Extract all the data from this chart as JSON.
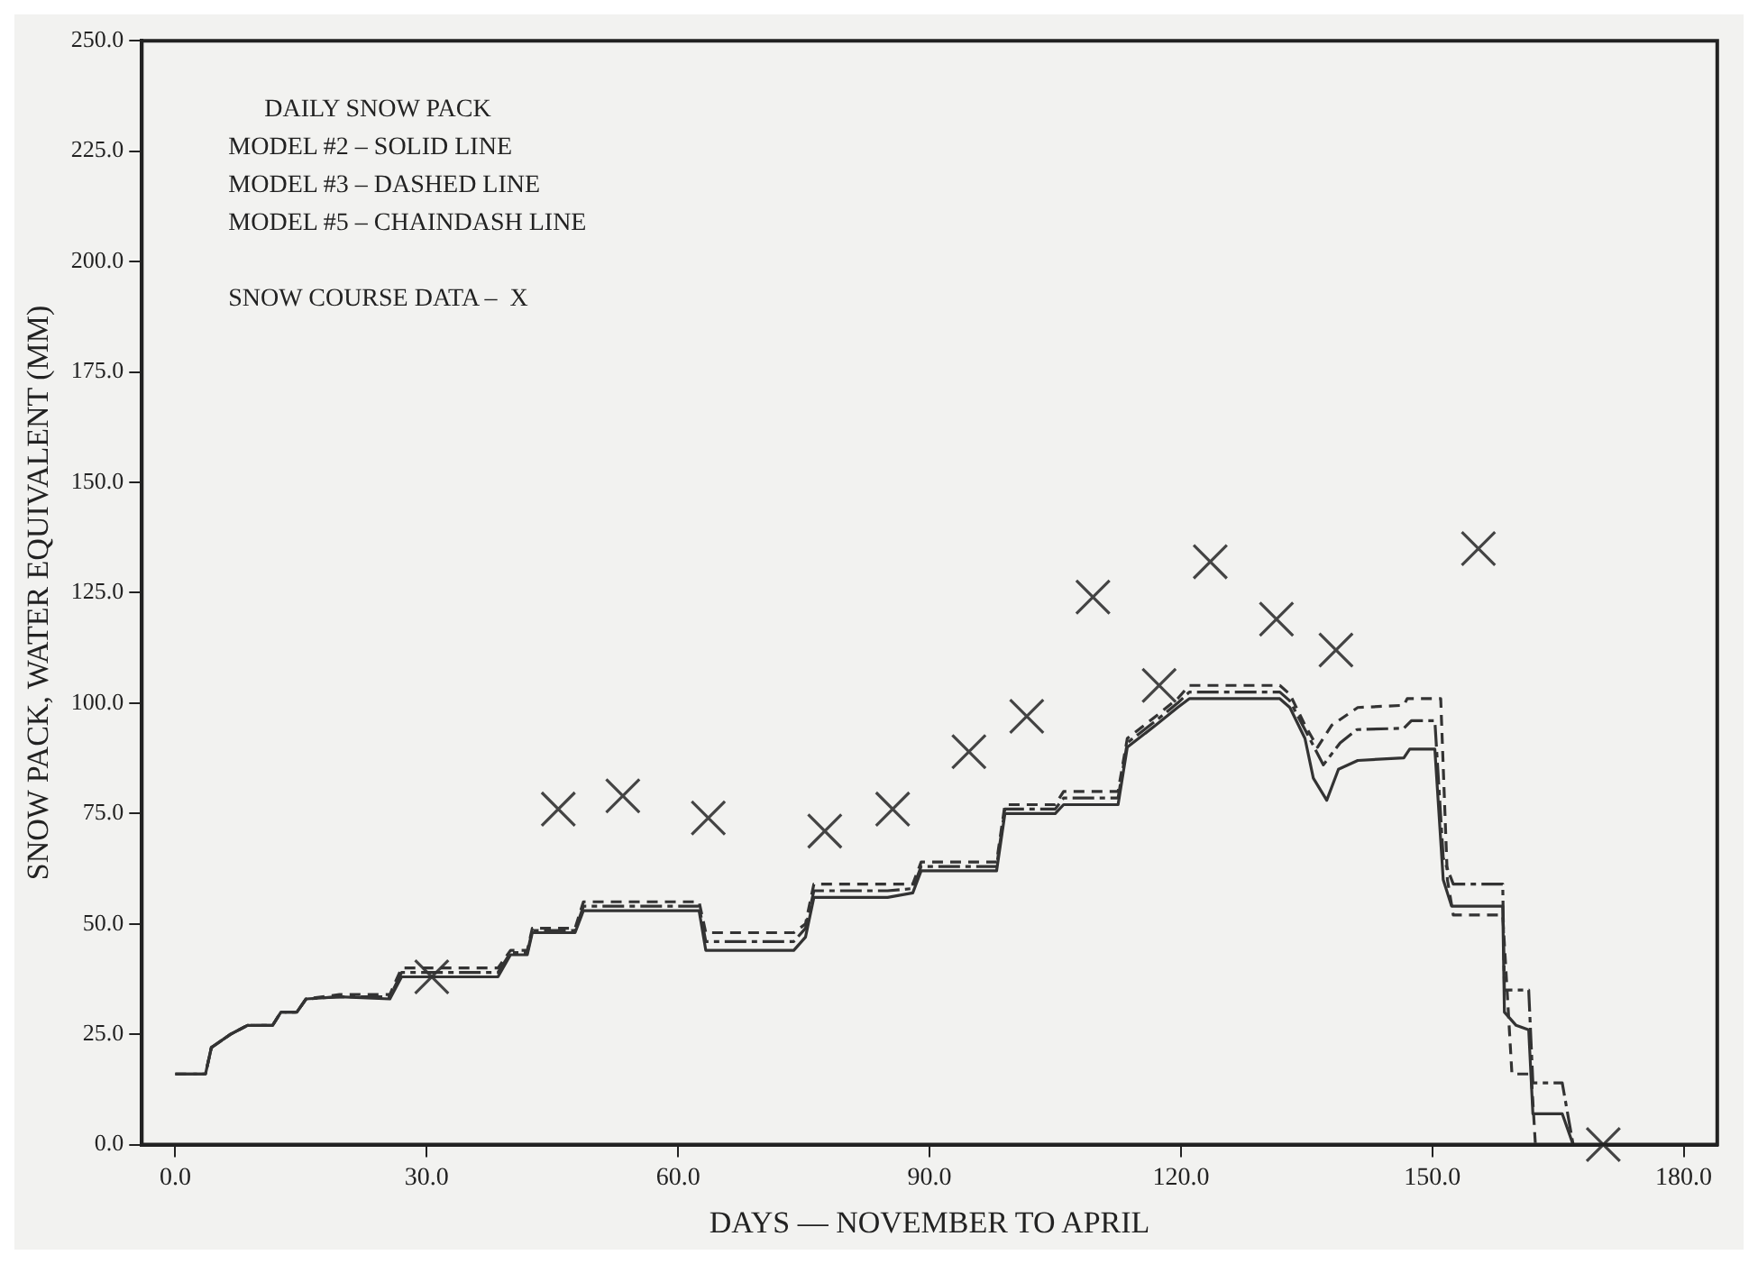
{
  "chart_data": {
    "type": "line",
    "xlabel": "DAYS — NOVEMBER TO APRIL",
    "ylabel": "SNOW PACK, WATER EQUIVALENT (MM)",
    "annotations": [
      "DAILY SNOW PACK",
      "MODEL #2 – SOLID LINE",
      "MODEL #3 – DASHED LINE",
      "MODEL #5 – CHAINDASH LINE",
      "SNOW COURSE DATA –  X"
    ],
    "xlim": [
      -4,
      184
    ],
    "xticks": [
      {
        "value": 0,
        "label": "0.0"
      },
      {
        "value": 30,
        "label": "30.0"
      },
      {
        "value": 60,
        "label": "60.0"
      },
      {
        "value": 90,
        "label": "90.0"
      },
      {
        "value": 120,
        "label": "120.0"
      },
      {
        "value": 150,
        "label": "150.0"
      },
      {
        "value": 180,
        "label": "180.0"
      }
    ],
    "ylim": [
      0,
      250
    ],
    "yticks": [
      {
        "value": 0,
        "label": "0.0"
      },
      {
        "value": 25,
        "label": "25.0"
      },
      {
        "value": 50,
        "label": "50.0"
      },
      {
        "value": 75,
        "label": "75.0"
      },
      {
        "value": 100,
        "label": "100.0"
      },
      {
        "value": 125,
        "label": "125.0"
      },
      {
        "value": 150,
        "label": "150.0"
      },
      {
        "value": 175,
        "label": "175.0"
      },
      {
        "value": 200,
        "label": "200.0"
      },
      {
        "value": 225,
        "label": "225.0"
      },
      {
        "value": 250,
        "label": "250.0"
      }
    ],
    "grid": false,
    "series": [
      {
        "type": "line",
        "line_style": "solid",
        "color": "#333333",
        "x": [
          0,
          3.6,
          4.3,
          6.6,
          8.6,
          11.6,
          12.6,
          14.5,
          15.6,
          19.6,
          25.6,
          27,
          38.5,
          40,
          42,
          42.6,
          47.7,
          48.7,
          62.5,
          63.3,
          73.8,
          75.2,
          76.2,
          85,
          88,
          89,
          98,
          99,
          105,
          106,
          112.5,
          113.6,
          117,
          119.6,
          121,
          131.8,
          133,
          134.8,
          135.8,
          137.4,
          138.8,
          141.1,
          146.6,
          147.3,
          150.3,
          151.3,
          152.3,
          158.4,
          158.6,
          160,
          161.5,
          162,
          165.5,
          166.8
        ],
        "values": [
          16,
          16,
          22,
          25,
          27,
          27,
          30,
          30,
          33,
          33.5,
          33,
          38,
          38,
          43,
          43,
          48,
          48,
          53,
          53,
          44,
          44,
          47,
          56,
          56,
          57,
          62,
          62,
          75,
          75,
          77,
          77,
          90,
          95,
          99,
          101,
          101,
          99,
          92,
          83,
          78,
          85,
          87,
          87.6,
          89.6,
          89.6,
          60,
          54,
          54,
          30,
          27,
          26,
          7,
          7,
          0
        ]
      },
      {
        "type": "line",
        "line_style": "dashed",
        "color": "#333333",
        "x": [
          0,
          3.6,
          4.3,
          6.6,
          8.6,
          11.6,
          12.6,
          14.5,
          15.6,
          19.6,
          25.6,
          27,
          38.5,
          40,
          42,
          42.6,
          47.7,
          48.7,
          62.5,
          63.3,
          73.8,
          75.2,
          76.2,
          85,
          88,
          89,
          98,
          99,
          105,
          106,
          112.5,
          113.6,
          117,
          119.6,
          121,
          131.8,
          133,
          134.8,
          136.3,
          138,
          141.1,
          146.6,
          147,
          151,
          151.8,
          152.5,
          158.4,
          159.5,
          161.8,
          162.3
        ],
        "values": [
          16,
          16,
          22,
          25,
          27,
          27,
          30,
          30,
          33,
          34,
          34,
          40,
          40,
          44,
          44,
          49,
          49,
          55,
          55,
          48,
          48,
          50,
          59,
          59,
          59,
          64,
          64,
          77,
          77,
          80,
          80,
          92,
          97,
          101,
          104,
          104,
          102,
          95,
          90,
          95,
          99,
          99.5,
          101,
          101,
          60,
          52,
          52,
          16,
          16,
          0
        ]
      },
      {
        "type": "line",
        "line_style": "dashdot",
        "color": "#333333",
        "x": [
          0,
          3.6,
          4.3,
          6.6,
          8.6,
          11.6,
          12.6,
          14.5,
          15.6,
          19.6,
          25.6,
          27,
          38.5,
          40,
          42,
          42.6,
          47.7,
          48.7,
          62.5,
          63.3,
          73.8,
          75.2,
          76.2,
          85,
          88,
          89,
          98,
          99,
          105,
          106,
          112.5,
          113.6,
          117,
          119.6,
          121,
          131.8,
          133,
          134.8,
          137,
          139,
          141,
          146.6,
          147.5,
          150.3,
          151.3,
          152.5,
          158.4,
          158.6,
          161.5,
          162,
          165.5,
          166.8
        ],
        "values": [
          16,
          16,
          22,
          25,
          27,
          27,
          30,
          30,
          33,
          33.5,
          33.5,
          39,
          39,
          43.5,
          43.5,
          48.5,
          48.5,
          54,
          54,
          46,
          46,
          49,
          57.5,
          57.5,
          58,
          63,
          63,
          76,
          76,
          78.5,
          78.5,
          91,
          96,
          100,
          102.5,
          102.5,
          100.5,
          94,
          86,
          91,
          94,
          94.3,
          96,
          96,
          65,
          59,
          59,
          35,
          35,
          14,
          14,
          0
        ]
      },
      {
        "type": "scatter",
        "marker": "cross",
        "color": "#444444",
        "x": [
          30.6,
          45.7,
          53.4,
          63.6,
          77.5,
          85.6,
          94.7,
          101.6,
          109.5,
          117.4,
          123.5,
          131.4,
          138.5,
          155.5,
          170.4
        ],
        "values": [
          38,
          76,
          79,
          74,
          71,
          76,
          89,
          97,
          124,
          104,
          132,
          119,
          112,
          135,
          0
        ]
      }
    ]
  }
}
